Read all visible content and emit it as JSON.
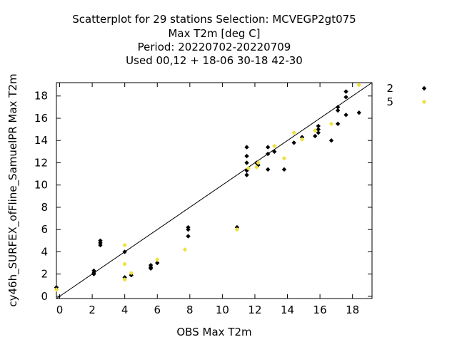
{
  "chart_data": {
    "type": "scatter",
    "title_lines": [
      "Scatterplot for   29 stations Selection: MCVEGP2gt075",
      "Max T2m [deg C]",
      "Period: 20220702-20220709",
      "Used  00,12  + 18-06 30-18 42-30"
    ],
    "xlabel": "OBS Max T2m",
    "ylabel": "cy46h_SURFEX_ofFline_SamuelPR Max T2m",
    "xlim": [
      -0.2,
      19.2
    ],
    "ylim": [
      -0.2,
      19.2
    ],
    "x_ticks": [
      0,
      2,
      4,
      6,
      8,
      10,
      12,
      14,
      16,
      18
    ],
    "y_ticks": [
      0,
      2,
      4,
      6,
      8,
      10,
      12,
      14,
      16,
      18
    ],
    "grid": false,
    "legend_position": "right",
    "diagonal_line": true,
    "series": [
      {
        "name": "2",
        "color": "#000000",
        "marker": "diamond",
        "points": [
          [
            -0.2,
            0.8
          ],
          [
            2.1,
            2.3
          ],
          [
            2.1,
            2.0
          ],
          [
            2.1,
            2.1
          ],
          [
            2.5,
            5.0
          ],
          [
            2.5,
            4.8
          ],
          [
            2.5,
            4.6
          ],
          [
            4.0,
            4.0
          ],
          [
            4.0,
            1.7
          ],
          [
            4.4,
            1.9
          ],
          [
            5.6,
            2.5
          ],
          [
            5.6,
            2.8
          ],
          [
            5.6,
            2.6
          ],
          [
            6.0,
            3.0
          ],
          [
            7.9,
            6.2
          ],
          [
            7.9,
            6.0
          ],
          [
            7.9,
            5.4
          ],
          [
            10.9,
            6.2
          ],
          [
            11.5,
            13.4
          ],
          [
            11.5,
            12.6
          ],
          [
            11.5,
            12.0
          ],
          [
            11.5,
            11.3
          ],
          [
            11.5,
            10.9
          ],
          [
            12.1,
            12.0
          ],
          [
            12.2,
            11.8
          ],
          [
            12.8,
            13.4
          ],
          [
            12.8,
            12.8
          ],
          [
            12.8,
            11.4
          ],
          [
            13.2,
            13.0
          ],
          [
            13.8,
            11.4
          ],
          [
            14.4,
            13.8
          ],
          [
            14.9,
            14.3
          ],
          [
            15.7,
            14.4
          ],
          [
            15.9,
            15.3
          ],
          [
            15.9,
            15.0
          ],
          [
            15.9,
            14.7
          ],
          [
            16.7,
            14.0
          ],
          [
            17.1,
            17.0
          ],
          [
            17.1,
            16.7
          ],
          [
            17.1,
            15.5
          ],
          [
            17.6,
            18.4
          ],
          [
            17.6,
            17.9
          ],
          [
            17.6,
            16.3
          ],
          [
            18.4,
            16.5
          ]
        ]
      },
      {
        "name": "5",
        "color": "#f0e040",
        "marker": "diamond",
        "points": [
          [
            -0.2,
            0.6
          ],
          [
            4.0,
            4.6
          ],
          [
            4.0,
            2.9
          ],
          [
            4.0,
            1.5
          ],
          [
            4.4,
            2.1
          ],
          [
            6.0,
            3.3
          ],
          [
            7.7,
            4.2
          ],
          [
            10.9,
            6.0
          ],
          [
            11.6,
            11.5
          ],
          [
            12.1,
            11.6
          ],
          [
            12.2,
            12.0
          ],
          [
            13.2,
            13.5
          ],
          [
            13.8,
            12.4
          ],
          [
            14.4,
            14.7
          ],
          [
            14.9,
            14.1
          ],
          [
            15.7,
            14.9
          ],
          [
            16.7,
            15.5
          ],
          [
            18.4,
            19.0
          ]
        ]
      }
    ]
  }
}
